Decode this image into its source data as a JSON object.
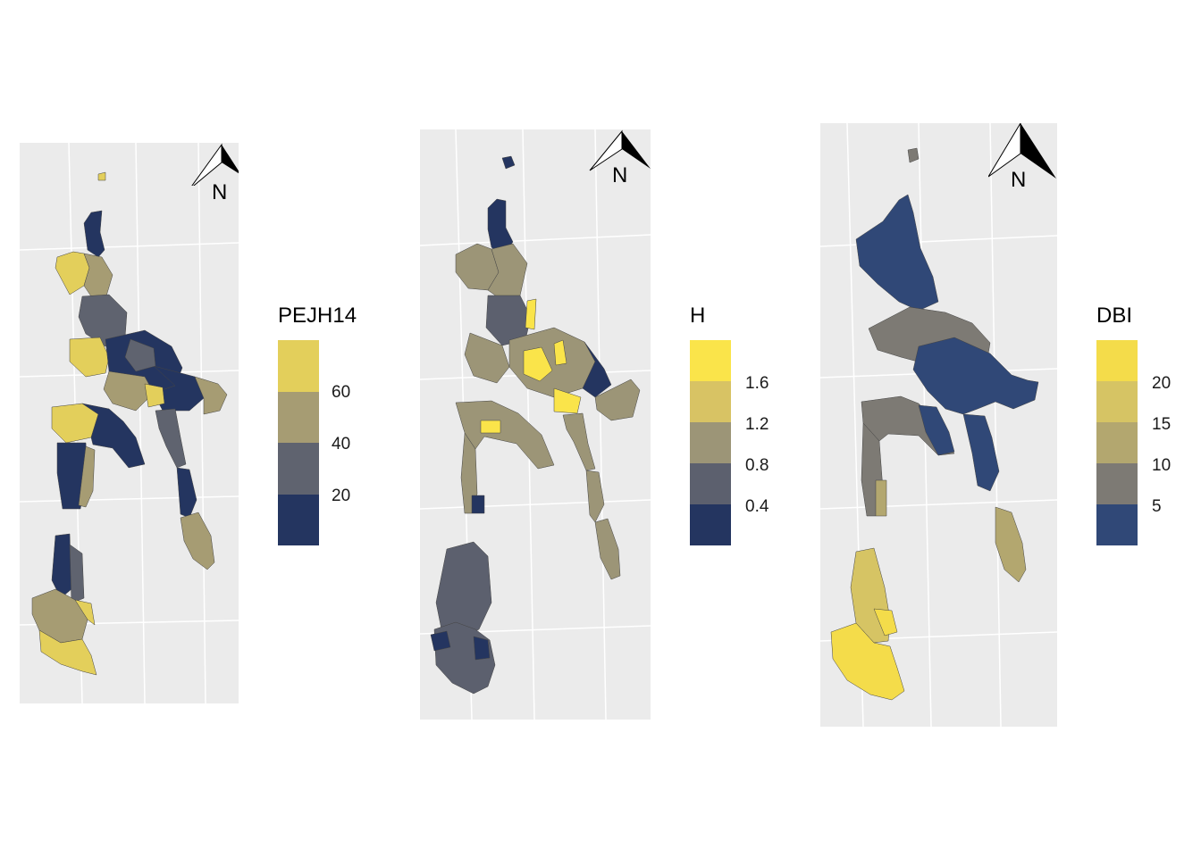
{
  "maps": [
    {
      "legend_title": "PEJH14",
      "legend_colors": [
        "#e3cf5b",
        "#a69c73",
        "#5f636f",
        "#243560"
      ],
      "legend_ticks": [
        "60",
        "40",
        "20"
      ],
      "north_label": "N"
    },
    {
      "legend_title": "H",
      "legend_colors": [
        "#fae44a",
        "#d8c364",
        "#9c9577",
        "#5c606e",
        "#243560"
      ],
      "legend_ticks": [
        "1.6",
        "1.2",
        "0.8",
        "0.4"
      ],
      "north_label": "N"
    },
    {
      "legend_title": "DBI",
      "legend_colors": [
        "#f4dc4a",
        "#d6c464",
        "#b3a76f",
        "#7d7a74",
        "#304877"
      ],
      "legend_ticks": [
        "20",
        "15",
        "10",
        "5"
      ],
      "north_label": "N"
    }
  ]
}
